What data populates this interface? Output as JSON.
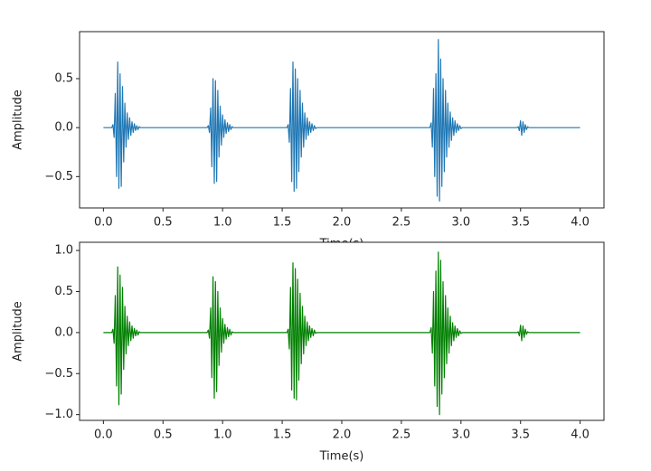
{
  "chart_data": [
    {
      "type": "line",
      "xlabel": "Time(s)",
      "ylabel": "Amplitude",
      "color": "#1f77b4",
      "xlim": [
        -0.2,
        4.2
      ],
      "ylim": [
        -0.82,
        0.98
      ],
      "xticks": [
        {
          "value": 0,
          "label": "0.0"
        },
        0.5,
        {
          "value": 1,
          "label": "1.0"
        },
        1.5,
        {
          "value": 2,
          "label": "2.0"
        },
        2.5,
        {
          "value": 3,
          "label": "3.0"
        },
        3.5,
        {
          "value": 4,
          "label": "4.0"
        }
      ],
      "yticks": [
        {
          "value": -0.5,
          "label": "−0.5"
        },
        {
          "value": 0,
          "label": "0.0"
        },
        0.5
      ],
      "x": [
        0,
        0.07,
        0.08,
        0.09,
        0.1,
        0.11,
        0.12,
        0.13,
        0.14,
        0.15,
        0.16,
        0.17,
        0.18,
        0.19,
        0.2,
        0.21,
        0.22,
        0.23,
        0.24,
        0.25,
        0.26,
        0.27,
        0.28,
        0.29,
        0.3,
        0.31,
        0.87,
        0.88,
        0.89,
        0.9,
        0.91,
        0.92,
        0.93,
        0.94,
        0.95,
        0.96,
        0.97,
        0.98,
        0.99,
        1.0,
        1.01,
        1.02,
        1.03,
        1.04,
        1.05,
        1.06,
        1.07,
        1.08,
        1.09,
        1.54,
        1.55,
        1.56,
        1.57,
        1.58,
        1.59,
        1.6,
        1.61,
        1.62,
        1.63,
        1.64,
        1.65,
        1.66,
        1.67,
        1.68,
        1.69,
        1.7,
        1.71,
        1.72,
        1.73,
        1.74,
        1.75,
        1.76,
        1.77,
        1.78,
        1.79,
        2.74,
        2.75,
        2.76,
        2.77,
        2.78,
        2.79,
        2.8,
        2.81,
        2.82,
        2.83,
        2.84,
        2.85,
        2.86,
        2.87,
        2.88,
        2.89,
        2.9,
        2.91,
        2.92,
        2.93,
        2.94,
        2.95,
        2.96,
        2.97,
        2.98,
        2.99,
        3.0,
        3.01,
        3.47,
        3.48,
        3.49,
        3.5,
        3.51,
        3.52,
        3.53,
        3.54,
        3.55,
        3.56,
        3.57,
        4.0
      ],
      "values": [
        0,
        0,
        0.03,
        -0.1,
        0.35,
        -0.5,
        0.67,
        -0.62,
        0.55,
        -0.6,
        0.42,
        -0.35,
        0.25,
        -0.2,
        0.15,
        -0.12,
        0.1,
        -0.08,
        0.06,
        -0.05,
        0.04,
        -0.03,
        0.02,
        -0.02,
        0.01,
        0,
        0,
        0.02,
        -0.05,
        0.2,
        -0.4,
        0.5,
        -0.57,
        0.48,
        -0.55,
        0.38,
        -0.3,
        0.22,
        -0.18,
        0.13,
        -0.1,
        0.08,
        -0.06,
        0.05,
        -0.04,
        0.03,
        -0.02,
        0.01,
        0,
        0,
        0.03,
        -0.15,
        0.4,
        -0.55,
        0.67,
        -0.65,
        0.6,
        -0.62,
        0.5,
        -0.45,
        0.38,
        -0.3,
        0.25,
        -0.2,
        0.15,
        -0.12,
        0.1,
        -0.08,
        0.06,
        -0.05,
        0.04,
        -0.03,
        0.02,
        -0.01,
        0,
        0,
        0.05,
        -0.2,
        0.4,
        -0.5,
        0.55,
        -0.7,
        0.9,
        -0.75,
        0.7,
        -0.6,
        0.5,
        -0.45,
        0.38,
        -0.3,
        0.25,
        -0.2,
        0.16,
        -0.13,
        0.1,
        -0.08,
        0.07,
        -0.05,
        0.04,
        -0.03,
        0.02,
        -0.01,
        0,
        0,
        0.01,
        -0.03,
        0.07,
        -0.08,
        0.06,
        -0.05,
        0.03,
        -0.02,
        0.01,
        0,
        0
      ]
    },
    {
      "type": "line",
      "xlabel": "Time(s)",
      "ylabel": "Amplitude",
      "color": "#008000",
      "xlim": [
        -0.2,
        4.2
      ],
      "ylim": [
        -1.07,
        1.1
      ],
      "xticks": [
        {
          "value": 0,
          "label": "0.0"
        },
        0.5,
        {
          "value": 1,
          "label": "1.0"
        },
        1.5,
        {
          "value": 2,
          "label": "2.0"
        },
        2.5,
        {
          "value": 3,
          "label": "3.0"
        },
        3.5,
        {
          "value": 4,
          "label": "4.0"
        }
      ],
      "yticks": [
        {
          "value": -1,
          "label": "−1.0"
        },
        {
          "value": -0.5,
          "label": "−0.5"
        },
        {
          "value": 0,
          "label": "0.0"
        },
        0.5,
        {
          "value": 1,
          "label": "1.0"
        }
      ],
      "x": [
        0,
        0.07,
        0.08,
        0.09,
        0.1,
        0.11,
        0.12,
        0.13,
        0.14,
        0.15,
        0.16,
        0.17,
        0.18,
        0.19,
        0.2,
        0.21,
        0.22,
        0.23,
        0.24,
        0.25,
        0.26,
        0.27,
        0.28,
        0.29,
        0.3,
        0.31,
        0.87,
        0.88,
        0.89,
        0.9,
        0.91,
        0.92,
        0.93,
        0.94,
        0.95,
        0.96,
        0.97,
        0.98,
        0.99,
        1.0,
        1.01,
        1.02,
        1.03,
        1.04,
        1.05,
        1.06,
        1.07,
        1.08,
        1.09,
        1.54,
        1.55,
        1.56,
        1.57,
        1.58,
        1.59,
        1.6,
        1.61,
        1.62,
        1.63,
        1.64,
        1.65,
        1.66,
        1.67,
        1.68,
        1.69,
        1.7,
        1.71,
        1.72,
        1.73,
        1.74,
        1.75,
        1.76,
        1.77,
        1.78,
        1.79,
        2.74,
        2.75,
        2.76,
        2.77,
        2.78,
        2.79,
        2.8,
        2.81,
        2.82,
        2.83,
        2.84,
        2.85,
        2.86,
        2.87,
        2.88,
        2.89,
        2.9,
        2.91,
        2.92,
        2.93,
        2.94,
        2.95,
        2.96,
        2.97,
        2.98,
        2.99,
        3.0,
        3.01,
        3.47,
        3.48,
        3.49,
        3.5,
        3.51,
        3.52,
        3.53,
        3.54,
        3.55,
        3.56,
        3.57,
        4.0
      ],
      "values": [
        0,
        0,
        0.04,
        -0.13,
        0.45,
        -0.65,
        0.8,
        -0.88,
        0.7,
        -0.75,
        0.55,
        -0.45,
        0.32,
        -0.26,
        0.2,
        -0.16,
        0.13,
        -0.1,
        0.08,
        -0.07,
        0.05,
        -0.04,
        0.03,
        -0.03,
        0.01,
        0,
        0,
        0.03,
        -0.07,
        0.3,
        -0.55,
        0.68,
        -0.8,
        0.62,
        -0.72,
        0.5,
        -0.4,
        0.3,
        -0.24,
        0.17,
        -0.13,
        0.1,
        -0.08,
        0.06,
        -0.05,
        0.04,
        -0.03,
        0.01,
        0,
        0,
        0.04,
        -0.2,
        0.55,
        -0.7,
        0.85,
        -0.8,
        0.78,
        -0.82,
        0.65,
        -0.58,
        0.48,
        -0.38,
        0.32,
        -0.26,
        0.2,
        -0.16,
        0.13,
        -0.1,
        0.08,
        -0.06,
        0.05,
        -0.04,
        0.03,
        -0.01,
        0,
        0,
        0.06,
        -0.25,
        0.5,
        -0.65,
        0.75,
        -0.9,
        0.98,
        -1.0,
        0.88,
        -0.75,
        0.62,
        -0.55,
        0.45,
        -0.38,
        0.3,
        -0.25,
        0.2,
        -0.16,
        0.12,
        -0.1,
        0.08,
        -0.06,
        0.05,
        -0.04,
        0.02,
        -0.01,
        0,
        0,
        0.01,
        -0.04,
        0.09,
        -0.1,
        0.08,
        -0.06,
        0.04,
        -0.02,
        0.01,
        0,
        0
      ]
    }
  ]
}
